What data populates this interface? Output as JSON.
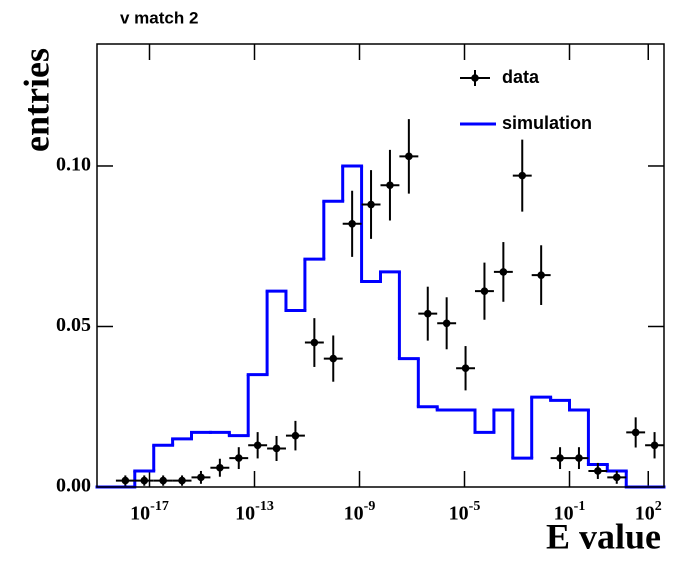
{
  "chart_data": {
    "type": "histogram",
    "title": "v match 2",
    "xlabel": "E value",
    "ylabel": "entries",
    "xscale": "log",
    "xlim": [
      1e-19,
      398
    ],
    "ylim": [
      0,
      0.138
    ],
    "xticks": [
      {
        "value": 1e-17,
        "label": "10^-17"
      },
      {
        "value": 1e-13,
        "label": "10^-13"
      },
      {
        "value": 1e-09,
        "label": "10^-9"
      },
      {
        "value": 1e-05,
        "label": "10^-5"
      },
      {
        "value": 0.1,
        "label": "10^-1"
      },
      {
        "value": 100,
        "label": "10^2"
      }
    ],
    "yticks": [
      {
        "value": 0,
        "label": "0.00"
      },
      {
        "value": 0.05,
        "label": "0.05"
      },
      {
        "value": 0.1,
        "label": "0.10"
      }
    ],
    "bins": [
      1e-19,
      5.25e-19,
      2.75e-18,
      1.45e-17,
      7.59e-17,
      3.98e-16,
      2.09e-15,
      1.1e-14,
      5.75e-14,
      3.02e-13,
      1.58e-12,
      8.32e-12,
      4.37e-11,
      2.29e-10,
      1.2e-09,
      6.31e-09,
      3.31e-08,
      1.74e-07,
      9.12e-07,
      4.79e-06,
      2.51e-05,
      0.000132,
      0.000692,
      0.00363,
      0.0191,
      0.1,
      0.525,
      2.75,
      14.5,
      75.9,
      398
    ],
    "series": [
      {
        "name": "data",
        "color": "#000000",
        "style": "points",
        "values": [
          null,
          0.002,
          0.002,
          0.002,
          0.002,
          0.003,
          0.006,
          0.009,
          0.013,
          0.012,
          0.016,
          0.045,
          0.04,
          0.082,
          0.088,
          0.094,
          0.103,
          0.054,
          0.051,
          0.037,
          0.061,
          0.067,
          0.097,
          0.066,
          0.009,
          0.009,
          0.005,
          0.003,
          0.017,
          0.013
        ],
        "errors": [
          null,
          0.0016,
          0.0016,
          0.0016,
          0.0016,
          0.002,
          0.0028,
          0.0034,
          0.0041,
          0.0039,
          0.0046,
          0.0076,
          0.0072,
          0.0103,
          0.0107,
          0.011,
          0.0116,
          0.0084,
          0.0081,
          0.0069,
          0.0089,
          0.0093,
          0.0112,
          0.0093,
          0.0034,
          0.0034,
          0.0025,
          0.002,
          0.0047,
          0.0041
        ]
      },
      {
        "name": "simulation",
        "color": "#0000ff",
        "style": "step",
        "values": [
          0,
          0,
          0.005,
          0.013,
          0.015,
          0.017,
          0.017,
          0.016,
          0.035,
          0.061,
          0.055,
          0.071,
          0.089,
          0.1,
          0.064,
          0.067,
          0.04,
          0.025,
          0.024,
          0.024,
          0.017,
          0.024,
          0.009,
          0.028,
          0.027,
          0.024,
          0.007,
          0.005,
          0,
          0
        ]
      }
    ],
    "legend": "top-right"
  }
}
